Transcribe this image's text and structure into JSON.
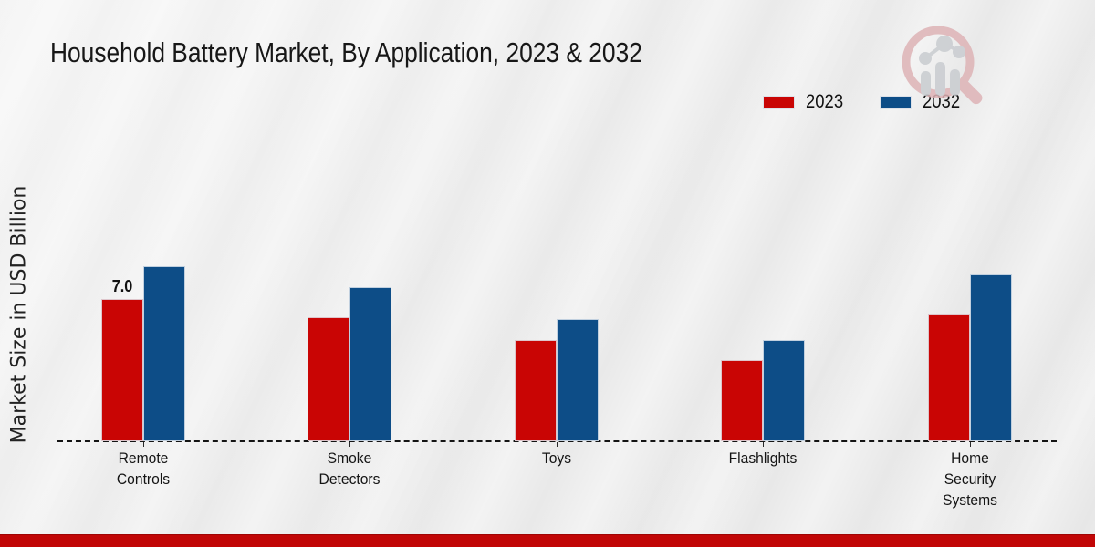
{
  "title": "Household Battery Market, By Application, 2023 & 2032",
  "ylabel": "Market Size in USD Billion",
  "legend": [
    {
      "label": "2023",
      "color": "#c90504"
    },
    {
      "label": "2032",
      "color": "#0d4d87"
    }
  ],
  "chart_data": {
    "type": "bar",
    "categories": [
      "Remote Controls",
      "Smoke Detectors",
      "Toys",
      "Flashlights",
      "Home Security Systems"
    ],
    "series": [
      {
        "name": "2023",
        "color": "#c90504",
        "values": [
          7.0,
          6.1,
          5.0,
          4.0,
          6.3
        ]
      },
      {
        "name": "2032",
        "color": "#0d4d87",
        "values": [
          8.6,
          7.6,
          6.0,
          5.0,
          8.2
        ]
      }
    ],
    "annotations": [
      {
        "category_index": 0,
        "series": "2023",
        "text": "7.0"
      }
    ],
    "ylim": [
      0,
      9.5
    ],
    "baseline_style": "dashed",
    "grid": false,
    "legend_position": "top-right"
  },
  "footer": {
    "accent_color": "#c10606"
  },
  "logo": {
    "name": "market-research-watermark-logo"
  }
}
